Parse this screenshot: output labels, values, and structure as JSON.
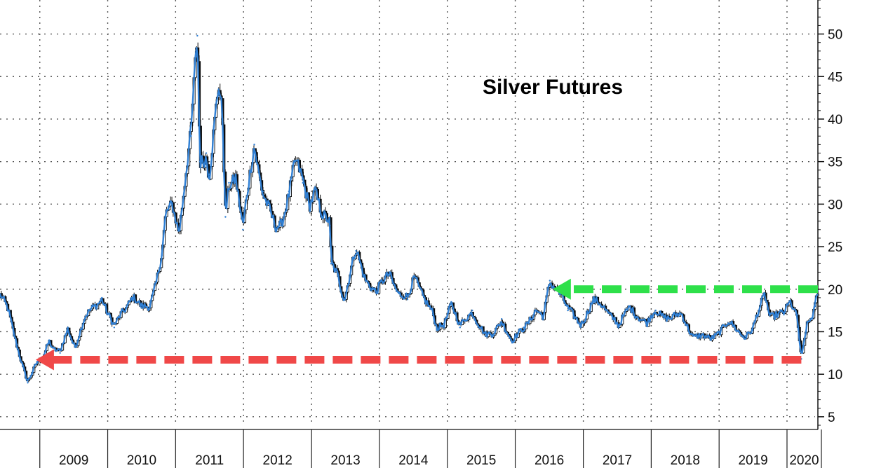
{
  "chart_data": {
    "type": "line",
    "title": "Silver Futures",
    "xlabel": "",
    "ylabel": "",
    "x_tick_labels": [
      "2009",
      "2010",
      "2011",
      "2012",
      "2013",
      "2014",
      "2015",
      "2016",
      "2017",
      "2018",
      "2019",
      "2020"
    ],
    "y_tick_labels": [
      "5",
      "10",
      "15",
      "20",
      "25",
      "30",
      "35",
      "40",
      "45",
      "50"
    ],
    "y_ticks": [
      5,
      10,
      15,
      20,
      25,
      30,
      35,
      40,
      45,
      50
    ],
    "ylim": [
      4,
      54
    ],
    "xlim": [
      "2008-06-01",
      "2020-06-15"
    ],
    "grid": true,
    "y_axis_side": "right",
    "colors": {
      "series": "#2f7fd4",
      "candles": "#0a0a0a",
      "grid": "#555555",
      "support_arrow": "#f04848",
      "resistance_arrow": "#2ee04a"
    },
    "series": [
      {
        "values": [
          {
            "x": "2008-06-01",
            "y": 19.2
          },
          {
            "x": "2008-07-15",
            "y": 17.5
          },
          {
            "x": "2008-09-01",
            "y": 13.5
          },
          {
            "x": "2008-10-01",
            "y": 11.0
          },
          {
            "x": "2008-10-28",
            "y": 9.0
          },
          {
            "x": "2008-11-20",
            "y": 10.0
          },
          {
            "x": "2008-12-20",
            "y": 11.5
          },
          {
            "x": "2009-01-15",
            "y": 12.0
          },
          {
            "x": "2009-02-20",
            "y": 14.0
          },
          {
            "x": "2009-03-15",
            "y": 12.8
          },
          {
            "x": "2009-04-20",
            "y": 12.5
          },
          {
            "x": "2009-06-01",
            "y": 15.5
          },
          {
            "x": "2009-07-10",
            "y": 13.2
          },
          {
            "x": "2009-09-01",
            "y": 16.5
          },
          {
            "x": "2009-10-15",
            "y": 18.0
          },
          {
            "x": "2009-12-01",
            "y": 19.0
          },
          {
            "x": "2010-01-01",
            "y": 17.0
          },
          {
            "x": "2010-02-05",
            "y": 15.5
          },
          {
            "x": "2010-03-15",
            "y": 17.3
          },
          {
            "x": "2010-05-15",
            "y": 19.0
          },
          {
            "x": "2010-07-01",
            "y": 17.8
          },
          {
            "x": "2010-08-15",
            "y": 18.2
          },
          {
            "x": "2010-09-20",
            "y": 21.0
          },
          {
            "x": "2010-10-20",
            "y": 24.0
          },
          {
            "x": "2010-11-10",
            "y": 28.5
          },
          {
            "x": "2010-12-15",
            "y": 30.0
          },
          {
            "x": "2011-01-20",
            "y": 27.0
          },
          {
            "x": "2011-02-25",
            "y": 33.5
          },
          {
            "x": "2011-03-25",
            "y": 38.0
          },
          {
            "x": "2011-04-28",
            "y": 49.8
          },
          {
            "x": "2011-05-12",
            "y": 35.0
          },
          {
            "x": "2011-06-15",
            "y": 36.0
          },
          {
            "x": "2011-07-01",
            "y": 33.5
          },
          {
            "x": "2011-08-20",
            "y": 43.5
          },
          {
            "x": "2011-09-10",
            "y": 40.0
          },
          {
            "x": "2011-09-26",
            "y": 28.5
          },
          {
            "x": "2011-10-15",
            "y": 32.5
          },
          {
            "x": "2011-11-20",
            "y": 33.5
          },
          {
            "x": "2011-12-29",
            "y": 27.0
          },
          {
            "x": "2012-02-28",
            "y": 37.0
          },
          {
            "x": "2012-04-15",
            "y": 31.5
          },
          {
            "x": "2012-06-20",
            "y": 27.0
          },
          {
            "x": "2012-07-20",
            "y": 27.5
          },
          {
            "x": "2012-09-01",
            "y": 31.5
          },
          {
            "x": "2012-10-05",
            "y": 35.0
          },
          {
            "x": "2012-11-15",
            "y": 32.5
          },
          {
            "x": "2012-12-20",
            "y": 30.0
          },
          {
            "x": "2013-01-20",
            "y": 32.0
          },
          {
            "x": "2013-02-28",
            "y": 28.5
          },
          {
            "x": "2013-04-10",
            "y": 27.5
          },
          {
            "x": "2013-04-16",
            "y": 23.0
          },
          {
            "x": "2013-05-20",
            "y": 22.0
          },
          {
            "x": "2013-06-27",
            "y": 18.8
          },
          {
            "x": "2013-08-28",
            "y": 24.5
          },
          {
            "x": "2013-10-15",
            "y": 21.5
          },
          {
            "x": "2013-12-15",
            "y": 19.5
          },
          {
            "x": "2014-02-24",
            "y": 22.0
          },
          {
            "x": "2014-04-15",
            "y": 19.5
          },
          {
            "x": "2014-06-01",
            "y": 18.8
          },
          {
            "x": "2014-07-10",
            "y": 21.5
          },
          {
            "x": "2014-09-01",
            "y": 19.0
          },
          {
            "x": "2014-10-15",
            "y": 17.0
          },
          {
            "x": "2014-11-05",
            "y": 15.2
          },
          {
            "x": "2014-12-15",
            "y": 16.0
          },
          {
            "x": "2015-01-22",
            "y": 18.5
          },
          {
            "x": "2015-03-10",
            "y": 15.5
          },
          {
            "x": "2015-05-15",
            "y": 17.5
          },
          {
            "x": "2015-07-24",
            "y": 14.5
          },
          {
            "x": "2015-09-01",
            "y": 14.6
          },
          {
            "x": "2015-10-20",
            "y": 16.5
          },
          {
            "x": "2015-12-15",
            "y": 13.7
          },
          {
            "x": "2016-02-15",
            "y": 15.5
          },
          {
            "x": "2016-04-20",
            "y": 17.5
          },
          {
            "x": "2016-06-01",
            "y": 16.5
          },
          {
            "x": "2016-07-05",
            "y": 21.0
          },
          {
            "x": "2016-08-20",
            "y": 20.0
          },
          {
            "x": "2016-10-10",
            "y": 17.5
          },
          {
            "x": "2016-12-20",
            "y": 16.0
          },
          {
            "x": "2017-02-25",
            "y": 18.5
          },
          {
            "x": "2017-04-20",
            "y": 18.0
          },
          {
            "x": "2017-06-20",
            "y": 16.5
          },
          {
            "x": "2017-07-10",
            "y": 15.5
          },
          {
            "x": "2017-09-08",
            "y": 18.0
          },
          {
            "x": "2017-12-10",
            "y": 15.8
          },
          {
            "x": "2018-01-25",
            "y": 17.5
          },
          {
            "x": "2018-04-15",
            "y": 16.5
          },
          {
            "x": "2018-06-15",
            "y": 17.0
          },
          {
            "x": "2018-08-15",
            "y": 14.5
          },
          {
            "x": "2018-11-15",
            "y": 14.2
          },
          {
            "x": "2019-02-20",
            "y": 16.0
          },
          {
            "x": "2019-05-20",
            "y": 14.5
          },
          {
            "x": "2019-07-01",
            "y": 15.2
          },
          {
            "x": "2019-09-04",
            "y": 19.5
          },
          {
            "x": "2019-10-01",
            "y": 17.0
          },
          {
            "x": "2019-12-15",
            "y": 17.0
          },
          {
            "x": "2020-01-20",
            "y": 18.5
          },
          {
            "x": "2020-02-25",
            "y": 17.0
          },
          {
            "x": "2020-03-18",
            "y": 11.8
          },
          {
            "x": "2020-04-15",
            "y": 15.5
          },
          {
            "x": "2020-05-15",
            "y": 16.5
          },
          {
            "x": "2020-06-01",
            "y": 18.0
          },
          {
            "x": "2020-06-15",
            "y": 19.8
          }
        ]
      }
    ],
    "annotations": [
      {
        "type": "arrow",
        "style": "dashed",
        "color": "#f04848",
        "from": {
          "x": "2020-03-18",
          "y": 11.7
        },
        "to": {
          "x": "2008-12-10",
          "y": 11.7
        }
      },
      {
        "type": "arrow",
        "style": "dashed",
        "color": "#2ee04a",
        "from": {
          "x": "2020-06-15",
          "y": 20.0
        },
        "to": {
          "x": "2016-07-20",
          "y": 20.0
        }
      }
    ]
  }
}
